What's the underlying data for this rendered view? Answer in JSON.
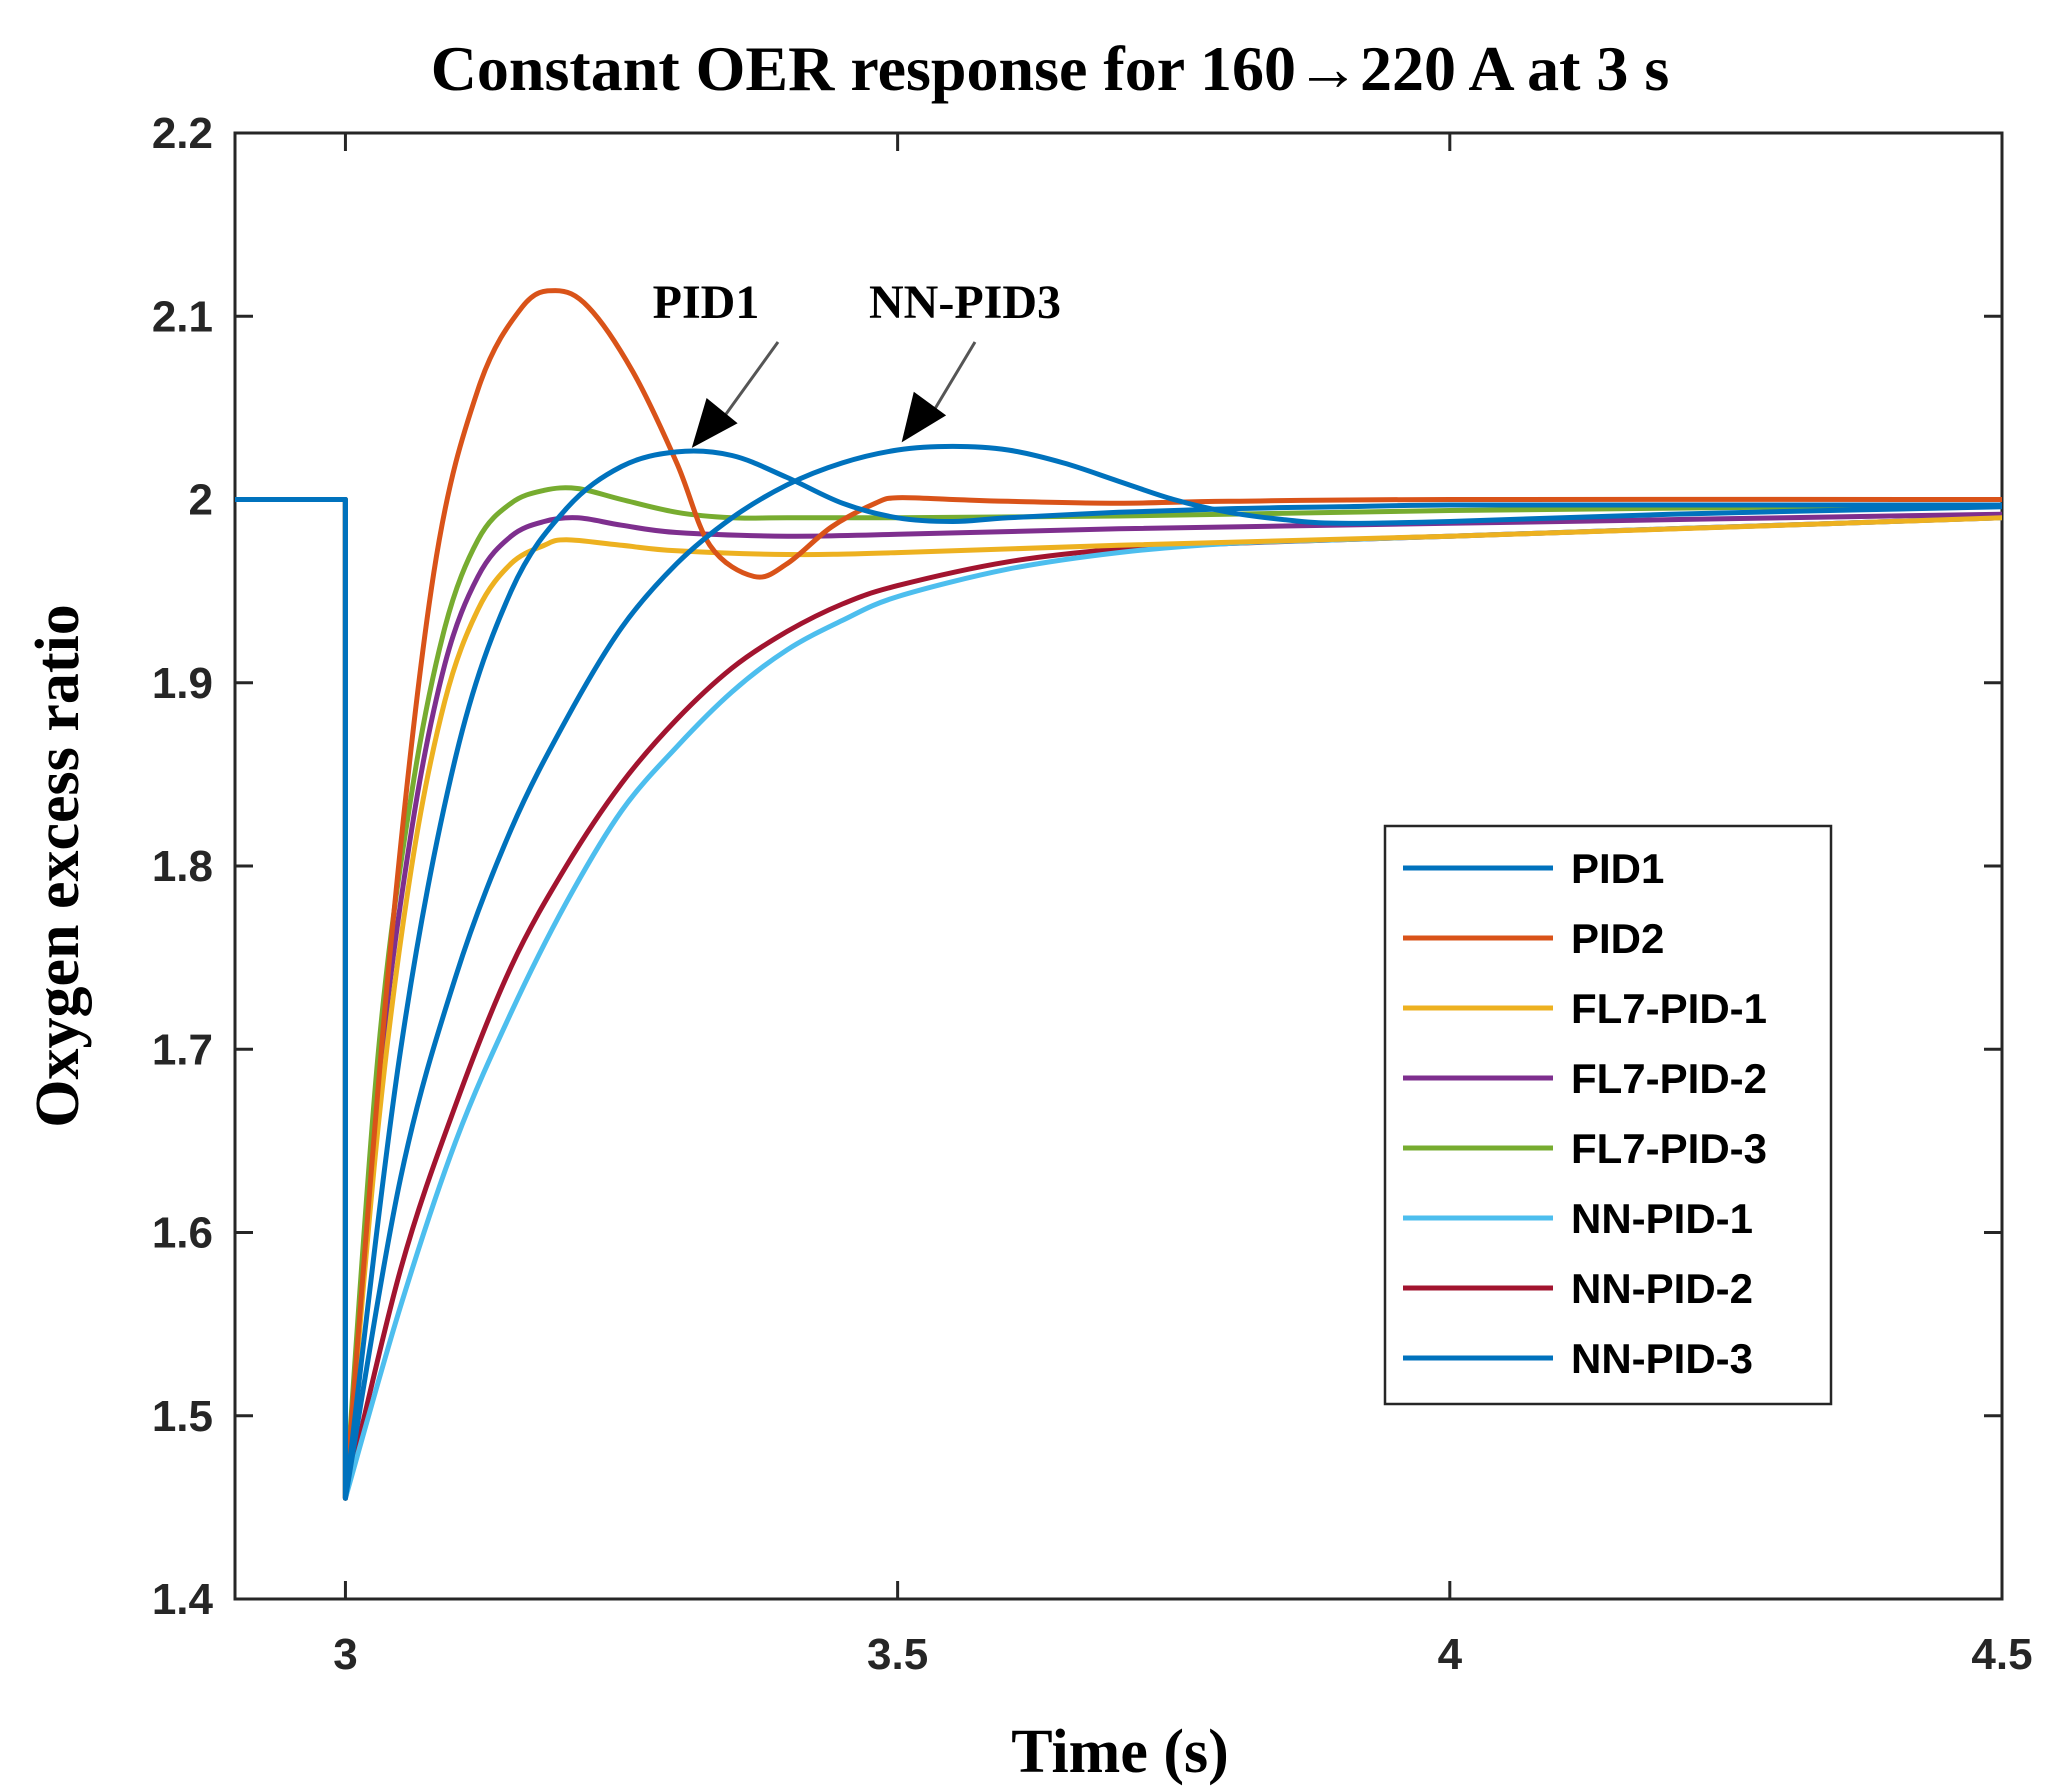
{
  "chart_data": {
    "type": "line",
    "title": "Constant OER response for 160→220 A at 3 s",
    "xlabel": "Time (s)",
    "ylabel": "Oxygen excess ratio",
    "xlim": [
      2.9,
      4.5
    ],
    "ylim": [
      1.4,
      2.2
    ],
    "xticks": [
      3,
      3.5,
      4,
      4.5
    ],
    "xtick_labels": [
      "3",
      "3.5",
      "4",
      "4.5"
    ],
    "yticks": [
      1.4,
      1.5,
      1.6,
      1.7,
      1.8,
      1.9,
      2.0,
      2.1,
      2.2
    ],
    "ytick_labels": [
      "1.4",
      "1.5",
      "1.6",
      "1.7",
      "1.8",
      "1.9",
      "2",
      "2.1",
      "2.2"
    ],
    "grid": false,
    "legend_position": "bottom-right",
    "series": [
      {
        "name": "PID1",
        "color": "#0072BD",
        "x": [
          2.9,
          3.0,
          3.0,
          3.05,
          3.1,
          3.15,
          3.2,
          3.25,
          3.3,
          3.35,
          3.4,
          3.45,
          3.5,
          3.55,
          3.6,
          3.7,
          3.8,
          3.9,
          4.0,
          4.2,
          4.5
        ],
        "y": [
          2.0,
          2.0,
          1.455,
          1.7,
          1.86,
          1.95,
          1.995,
          2.018,
          2.026,
          2.024,
          2.012,
          1.998,
          1.99,
          1.988,
          1.99,
          1.993,
          1.995,
          1.996,
          1.997,
          1.997,
          1.997
        ]
      },
      {
        "name": "PID2",
        "color": "#D95319",
        "x": [
          2.9,
          3.0,
          3.0,
          3.04,
          3.08,
          3.12,
          3.16,
          3.19,
          3.22,
          3.26,
          3.3,
          3.33,
          3.37,
          3.4,
          3.44,
          3.48,
          3.5,
          3.55,
          3.6,
          3.7,
          3.8,
          4.0,
          4.5
        ],
        "y": [
          2.0,
          2.0,
          1.455,
          1.75,
          1.96,
          2.06,
          2.105,
          2.114,
          2.105,
          2.07,
          2.02,
          1.975,
          1.958,
          1.965,
          1.985,
          1.998,
          2.001,
          2.0,
          1.999,
          1.998,
          1.999,
          2.0,
          2.0
        ]
      },
      {
        "name": "FL7-PID-1",
        "color": "#EDB120",
        "x": [
          2.9,
          3.0,
          3.0,
          3.03,
          3.06,
          3.09,
          3.12,
          3.15,
          3.18,
          3.2,
          3.25,
          3.3,
          3.4,
          3.5,
          3.7,
          4.0,
          4.5
        ],
        "y": [
          2.0,
          2.0,
          1.455,
          1.66,
          1.8,
          1.89,
          1.94,
          1.965,
          1.975,
          1.978,
          1.975,
          1.972,
          1.97,
          1.971,
          1.975,
          1.98,
          1.99
        ]
      },
      {
        "name": "FL7-PID-2",
        "color": "#7E2F8E",
        "x": [
          2.9,
          3.0,
          3.0,
          3.03,
          3.06,
          3.09,
          3.12,
          3.15,
          3.18,
          3.21,
          3.25,
          3.3,
          3.4,
          3.5,
          3.7,
          4.0,
          4.5
        ],
        "y": [
          2.0,
          2.0,
          1.455,
          1.68,
          1.82,
          1.91,
          1.958,
          1.98,
          1.988,
          1.99,
          1.986,
          1.982,
          1.98,
          1.981,
          1.984,
          1.987,
          1.992
        ]
      },
      {
        "name": "FL7-PID-3",
        "color": "#77AC30",
        "x": [
          2.9,
          3.0,
          3.0,
          3.03,
          3.06,
          3.09,
          3.12,
          3.15,
          3.18,
          3.21,
          3.25,
          3.3,
          3.35,
          3.4,
          3.5,
          3.7,
          4.0,
          4.5
        ],
        "y": [
          2.0,
          2.0,
          1.455,
          1.7,
          1.84,
          1.93,
          1.978,
          1.998,
          2.005,
          2.006,
          2.0,
          1.993,
          1.99,
          1.99,
          1.99,
          1.991,
          1.994,
          1.997
        ]
      },
      {
        "name": "NN-PID-1",
        "color": "#4DBEEE",
        "x": [
          2.9,
          3.0,
          3.0,
          3.05,
          3.1,
          3.15,
          3.2,
          3.25,
          3.3,
          3.35,
          3.4,
          3.45,
          3.5,
          3.6,
          3.7,
          3.8,
          3.9,
          4.0,
          4.2,
          4.5
        ],
        "y": [
          2.0,
          2.0,
          1.455,
          1.56,
          1.65,
          1.72,
          1.78,
          1.83,
          1.865,
          1.895,
          1.918,
          1.934,
          1.947,
          1.962,
          1.971,
          1.976,
          1.978,
          1.98,
          1.984,
          1.99
        ]
      },
      {
        "name": "NN-PID-2",
        "color": "#A2142F",
        "x": [
          2.9,
          3.0,
          3.0,
          3.05,
          3.1,
          3.15,
          3.2,
          3.25,
          3.3,
          3.35,
          3.4,
          3.45,
          3.5,
          3.6,
          3.7,
          3.8,
          3.9,
          4.0,
          4.2,
          4.5
        ],
        "y": [
          2.0,
          2.0,
          1.455,
          1.58,
          1.67,
          1.745,
          1.8,
          1.845,
          1.88,
          1.908,
          1.928,
          1.943,
          1.953,
          1.966,
          1.973,
          1.976,
          1.978,
          1.98,
          1.984,
          1.99
        ]
      },
      {
        "name": "NN-PID-3",
        "color": "#0072BD",
        "x": [
          2.9,
          3.0,
          3.0,
          3.05,
          3.1,
          3.15,
          3.2,
          3.25,
          3.3,
          3.35,
          3.4,
          3.45,
          3.5,
          3.55,
          3.6,
          3.65,
          3.7,
          3.75,
          3.8,
          3.85,
          3.9,
          4.0,
          4.2,
          4.5
        ],
        "y": [
          2.0,
          2.0,
          1.455,
          1.63,
          1.74,
          1.82,
          1.88,
          1.93,
          1.965,
          1.99,
          2.008,
          2.02,
          2.027,
          2.029,
          2.027,
          2.02,
          2.01,
          2.0,
          1.993,
          1.989,
          1.987,
          1.988,
          1.992,
          1.996
        ]
      }
    ],
    "annotations": [
      {
        "text": "PID1",
        "target_x": 3.31,
        "target_y": 2.026
      },
      {
        "text": "NN-PID3",
        "target_x": 3.5,
        "target_y": 2.029
      }
    ]
  }
}
